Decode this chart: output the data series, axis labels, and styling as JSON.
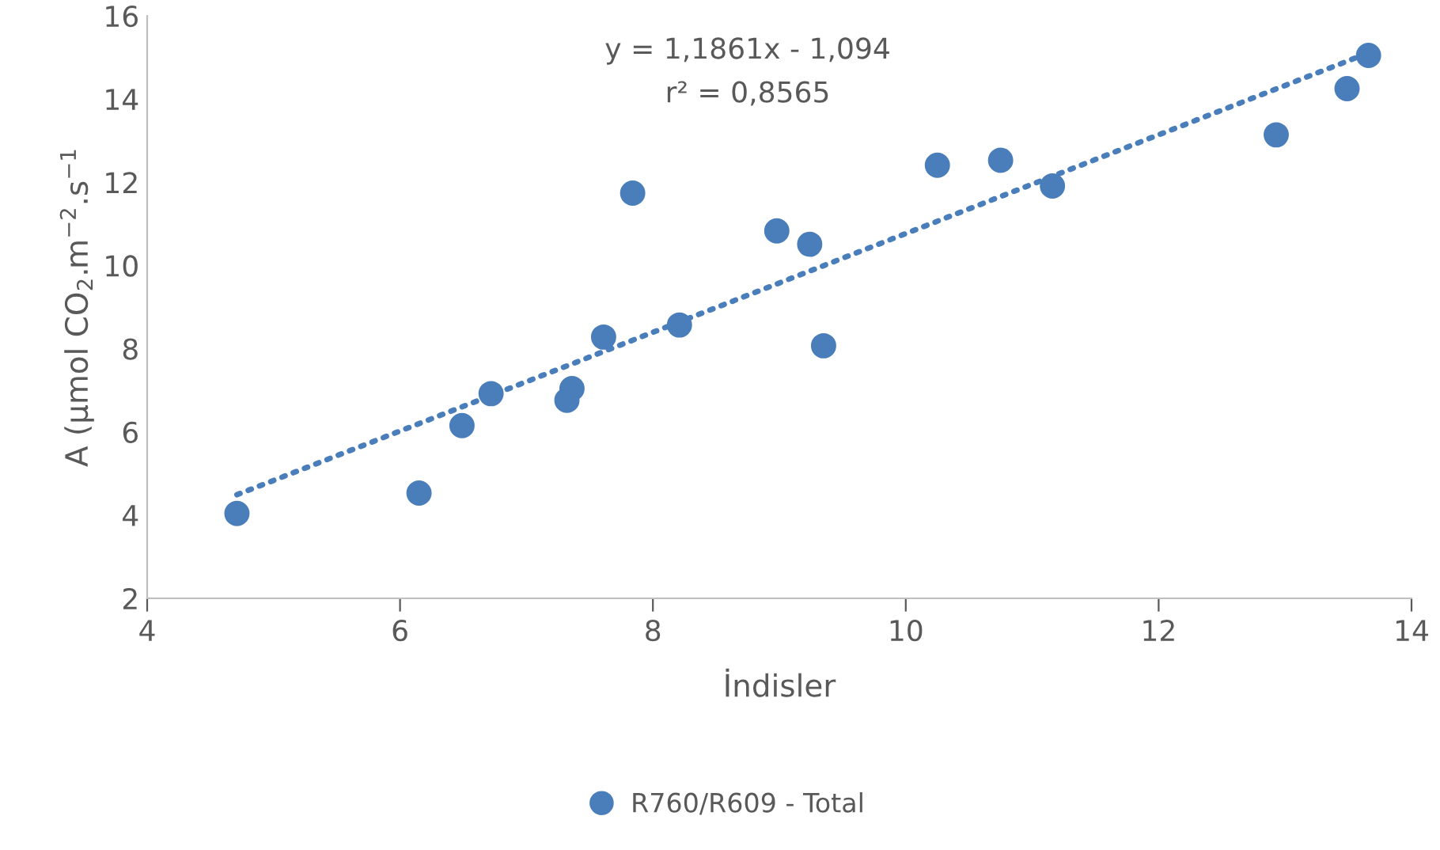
{
  "chart_data": {
    "type": "scatter",
    "xlabel": "İndisler",
    "ylabel": "A (µmol CO$_{2}$.m$^{−2}$.s$^{−1}$",
    "xlim": [
      4,
      14
    ],
    "xticks": [
      4,
      6,
      8,
      10,
      12,
      14
    ],
    "ylim": [
      2,
      16
    ],
    "yticks": [
      2,
      4,
      6,
      8,
      10,
      12,
      14,
      16
    ],
    "grid": false,
    "legend": "bottom",
    "annotations": [
      "y = 1,1861x - 1,094",
      "r² = 0,8565"
    ],
    "series": [
      {
        "name": "R760/R609 - Total",
        "marker": "circle",
        "color": "#4a7ebb",
        "x": [
          4.71,
          6.15,
          6.49,
          6.72,
          7.32,
          7.36,
          7.61,
          7.84,
          8.21,
          8.98,
          9.24,
          9.35,
          10.25,
          10.75,
          11.16,
          12.93,
          13.49,
          13.66
        ],
        "values": [
          4.04,
          4.53,
          6.15,
          6.92,
          6.76,
          7.04,
          8.28,
          11.74,
          8.57,
          10.83,
          10.51,
          8.07,
          12.41,
          12.53,
          11.91,
          13.14,
          14.25,
          15.05
        ]
      },
      {
        "type": "line",
        "color": "#4a7ebb",
        "line_style": "dotted",
        "x": [
          4.71,
          13.66
        ],
        "values": [
          4.49,
          15.11
        ]
      }
    ]
  }
}
